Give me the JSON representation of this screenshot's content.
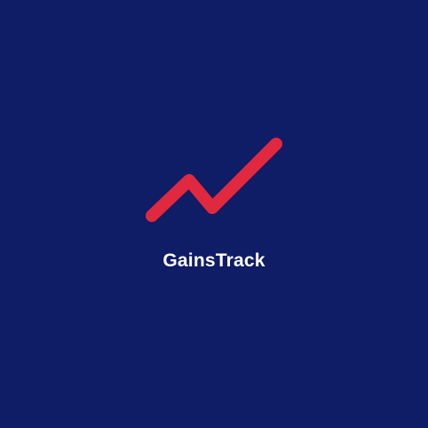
{
  "app": {
    "name": "GainsTrack"
  },
  "logo": {
    "icon": "trending-up-icon",
    "stroke_color": "#e0283f"
  },
  "colors": {
    "background": "#0f1c66",
    "text": "#ffffff"
  }
}
